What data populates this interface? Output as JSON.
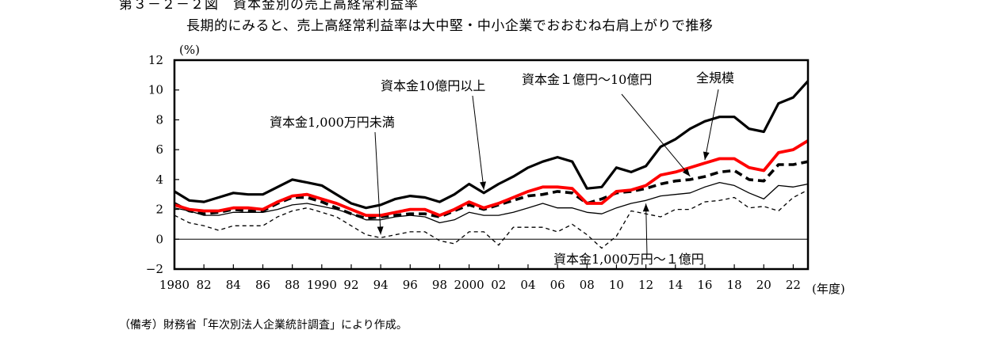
{
  "figure": {
    "title": "第３－２－２図　資本金別の売上高経常利益率",
    "subtitle": "長期的にみると、売上高経常利益率は大中堅・中小企業でおおむね右肩上がりで推移",
    "source": "（備考）財務省「年次別法人企業統計調査」により作成。"
  },
  "chart_data": {
    "type": "line",
    "ylabel": "(%)",
    "xlabel": "(年度)",
    "ylim": [
      -2,
      12
    ],
    "yticks": [
      "−2",
      "0",
      "2",
      "4",
      "6",
      "8",
      "10",
      "12"
    ],
    "xticks": [
      "1980",
      "82",
      "84",
      "86",
      "88",
      "1990",
      "92",
      "94",
      "96",
      "98",
      "2000",
      "02",
      "04",
      "06",
      "08",
      "10",
      "12",
      "14",
      "16",
      "18",
      "20",
      "22"
    ],
    "xlim": [
      1980,
      2023
    ],
    "grid": false,
    "x": [
      1980,
      1981,
      1982,
      1983,
      1984,
      1985,
      1986,
      1987,
      1988,
      1989,
      1990,
      1991,
      1992,
      1993,
      1994,
      1995,
      1996,
      1997,
      1998,
      1999,
      2000,
      2001,
      2002,
      2003,
      2004,
      2005,
      2006,
      2007,
      2008,
      2009,
      2010,
      2011,
      2012,
      2013,
      2014,
      2015,
      2016,
      2017,
      2018,
      2019,
      2020,
      2021,
      2022,
      2023
    ],
    "series": [
      {
        "name": "資本金10億円以上",
        "style": "bold-black",
        "values": [
          3.2,
          2.6,
          2.5,
          2.8,
          3.1,
          3.0,
          3.0,
          3.5,
          4.0,
          3.8,
          3.6,
          3.0,
          2.4,
          2.1,
          2.3,
          2.7,
          2.9,
          2.8,
          2.5,
          3.0,
          3.7,
          3.1,
          3.7,
          4.2,
          4.8,
          5.2,
          5.5,
          5.2,
          3.4,
          3.5,
          4.8,
          4.5,
          4.9,
          6.2,
          6.7,
          7.4,
          7.9,
          8.2,
          8.2,
          7.4,
          7.2,
          9.1,
          9.5,
          10.6
        ]
      },
      {
        "name": "全規模",
        "style": "red",
        "values": [
          2.3,
          2.0,
          1.9,
          1.9,
          2.1,
          2.1,
          2.0,
          2.5,
          2.9,
          3.0,
          2.7,
          2.4,
          2.0,
          1.6,
          1.6,
          1.8,
          2.0,
          2.0,
          1.6,
          2.0,
          2.5,
          2.1,
          2.4,
          2.8,
          3.2,
          3.5,
          3.5,
          3.4,
          2.4,
          2.4,
          3.2,
          3.3,
          3.6,
          4.3,
          4.5,
          4.8,
          5.1,
          5.4,
          5.4,
          4.8,
          4.6,
          5.8,
          6.0,
          6.6
        ]
      },
      {
        "name": "資本金１億円～10億円",
        "style": "bold-dashed",
        "values": [
          2.4,
          1.9,
          1.7,
          1.8,
          2.0,
          1.9,
          1.9,
          2.4,
          2.8,
          2.8,
          2.5,
          2.1,
          1.7,
          1.4,
          1.5,
          1.6,
          1.7,
          1.7,
          1.5,
          1.9,
          2.3,
          2.0,
          2.3,
          2.6,
          2.9,
          3.0,
          3.2,
          3.1,
          2.4,
          2.7,
          3.1,
          3.2,
          3.4,
          3.7,
          3.9,
          4.0,
          4.2,
          4.5,
          4.6,
          4.0,
          3.9,
          5.0,
          5.0,
          5.2
        ]
      },
      {
        "name": "資本金1,000万円～１億円",
        "style": "thin-black",
        "values": [
          2.1,
          1.9,
          1.6,
          1.6,
          1.8,
          1.8,
          1.8,
          2.0,
          2.3,
          2.4,
          2.2,
          2.0,
          1.7,
          1.3,
          1.3,
          1.5,
          1.6,
          1.5,
          1.1,
          1.3,
          1.8,
          1.6,
          1.6,
          1.8,
          2.1,
          2.4,
          2.1,
          2.1,
          1.8,
          1.7,
          2.1,
          2.4,
          2.6,
          2.9,
          3.0,
          3.1,
          3.5,
          3.8,
          3.6,
          3.1,
          2.7,
          3.6,
          3.5,
          3.7
        ]
      },
      {
        "name": "資本金1,000万円未満",
        "style": "thin-dashed",
        "values": [
          1.6,
          1.1,
          0.9,
          0.6,
          0.9,
          0.9,
          0.9,
          1.5,
          1.9,
          2.1,
          1.8,
          1.5,
          0.9,
          0.3,
          0.1,
          0.3,
          0.5,
          0.5,
          -0.1,
          -0.3,
          0.5,
          0.5,
          -0.4,
          0.8,
          0.8,
          0.8,
          0.5,
          1.0,
          0.3,
          -0.6,
          0.2,
          1.9,
          1.7,
          1.5,
          2.0,
          2.0,
          2.5,
          2.6,
          2.8,
          2.1,
          2.2,
          1.9,
          2.8,
          3.3
        ]
      }
    ],
    "annotations": [
      {
        "text": "資本金10億円以上",
        "series": 0
      },
      {
        "text": "資本金１億円～10億円",
        "series": 2
      },
      {
        "text": "全規模",
        "series": 1
      },
      {
        "text": "資本金1,000万円未満",
        "series": 4
      },
      {
        "text": "資本金1,000万円～１億円",
        "series": 3
      }
    ]
  }
}
